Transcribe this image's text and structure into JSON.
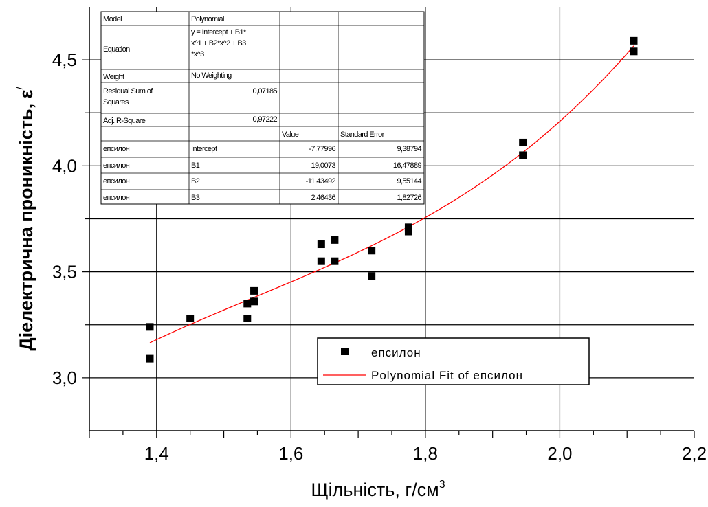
{
  "chart_data": {
    "type": "scatter",
    "title": "",
    "xlabel": "Щільність, г/см",
    "xlabel_superscript": "3",
    "ylabel": "Діелектрична проникність,  ε",
    "ylabel_superscript": "/",
    "xlim": [
      1.3,
      2.2
    ],
    "ylim": [
      2.75,
      4.75
    ],
    "x_ticks": [
      1.4,
      1.6,
      1.8,
      2.0,
      2.2
    ],
    "x_tick_labels": [
      "1,4",
      "1,6",
      "1,8",
      "2,0",
      "2,2"
    ],
    "y_ticks": [
      3.0,
      3.5,
      4.0,
      4.5
    ],
    "y_tick_labels": [
      "3,0",
      "3,5",
      "4,0",
      "4,5"
    ],
    "grid": true,
    "series": [
      {
        "name": "епсилон",
        "kind": "scatter",
        "marker": "square",
        "color": "#000000",
        "points": [
          [
            1.39,
            3.24
          ],
          [
            1.39,
            3.09
          ],
          [
            1.45,
            3.28
          ],
          [
            1.535,
            3.35
          ],
          [
            1.535,
            3.28
          ],
          [
            1.545,
            3.41
          ],
          [
            1.545,
            3.36
          ],
          [
            1.645,
            3.63
          ],
          [
            1.645,
            3.55
          ],
          [
            1.665,
            3.65
          ],
          [
            1.665,
            3.55
          ],
          [
            1.72,
            3.6
          ],
          [
            1.72,
            3.48
          ],
          [
            1.775,
            3.71
          ],
          [
            1.775,
            3.69
          ],
          [
            1.945,
            4.11
          ],
          [
            1.945,
            4.05
          ],
          [
            2.11,
            4.59
          ],
          [
            2.11,
            4.54
          ]
        ]
      },
      {
        "name": "Polynomial Fit of епсилон",
        "kind": "fit",
        "color": "#ff0000",
        "polynomial": {
          "intercept": -7.77996,
          "B1": 19.0073,
          "B2": -11.43492,
          "B3": 2.46436
        },
        "x_range": [
          1.39,
          2.11
        ]
      }
    ],
    "legend": {
      "placement": "bottom-right",
      "entries": [
        "епсилон",
        "Polynomial Fit of епсилон"
      ]
    },
    "stats_table": {
      "model_label": "Model",
      "model_value": "Polynomial",
      "equation_label": "Equation",
      "equation_lines": [
        "y = Intercept + B1*",
        "x^1 + B2*x^2 + B3",
        "*x^3"
      ],
      "weight_label": "Weight",
      "weight_value": "No Weighting",
      "rss_label_lines": [
        "Residual Sum of",
        "Squares"
      ],
      "rss_value": "0,07185",
      "adj_r2_label": "Adj. R-Square",
      "adj_r2_value": "0,97222",
      "value_header": "Value",
      "error_header": "Standard Error",
      "rows": [
        {
          "series": "епсилон",
          "param": "Intercept",
          "value": "-7,77996",
          "error": "9,38794"
        },
        {
          "series": "епсилон",
          "param": "B1",
          "value": "19,0073",
          "error": "16,47889"
        },
        {
          "series": "епсилон",
          "param": "B2",
          "value": "-11,43492",
          "error": "9,55144"
        },
        {
          "series": "епсилон",
          "param": "B3",
          "value": "2,46436",
          "error": "1,82726"
        }
      ]
    }
  }
}
